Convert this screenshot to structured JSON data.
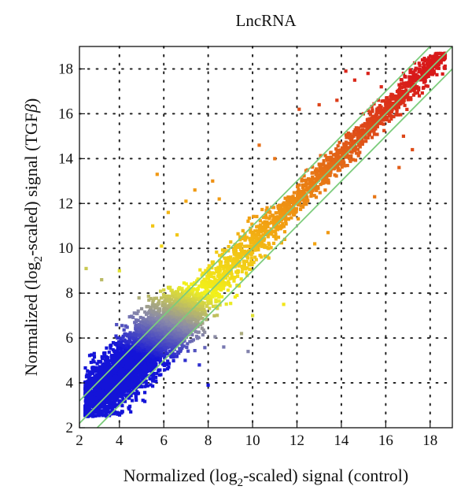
{
  "chart_data": {
    "type": "scatter",
    "title": "LncRNA",
    "xlabel": {
      "pre": "Normalized (log",
      "sub": "2",
      "post": "-scaled) signal (control)"
    },
    "ylabel": {
      "pre": "Normalized (log",
      "sub": "2",
      "post": "-scaled) signal (TGF",
      "beta": "β",
      "close": ")"
    },
    "xlim": [
      2.2,
      19
    ],
    "ylim": [
      2,
      19
    ],
    "x_ticks": [
      2,
      4,
      6,
      8,
      10,
      12,
      14,
      16,
      18
    ],
    "y_ticks": [
      2,
      4,
      6,
      8,
      10,
      12,
      14,
      16,
      18
    ],
    "grid": "dotted",
    "reference_lines": [
      {
        "name": "",
        "offset": 0,
        "color": "#7ccc7c"
      },
      {
        "name": "",
        "offset": 1,
        "color": "#7ccc7c"
      },
      {
        "name": "",
        "offset": -1,
        "color": "#7ccc7c"
      }
    ],
    "color_scale": [
      "#1414d8",
      "#8a8aa8",
      "#f2f21a",
      "#f2a012",
      "#e05a18",
      "#d81a1a"
    ],
    "point_count": 6000,
    "outliers": [
      {
        "x": 2.5,
        "y": 9.1
      },
      {
        "x": 3.2,
        "y": 8.6
      },
      {
        "x": 4.0,
        "y": 9.0
      },
      {
        "x": 5.5,
        "y": 11.0
      },
      {
        "x": 5.9,
        "y": 10.1
      },
      {
        "x": 6.2,
        "y": 11.6
      },
      {
        "x": 7.4,
        "y": 12.6
      },
      {
        "x": 8.2,
        "y": 13.0
      },
      {
        "x": 5.7,
        "y": 13.3
      },
      {
        "x": 7.0,
        "y": 12.1
      },
      {
        "x": 6.6,
        "y": 10.6
      },
      {
        "x": 8.5,
        "y": 12.2
      },
      {
        "x": 10.3,
        "y": 14.6
      },
      {
        "x": 11.0,
        "y": 14.0
      },
      {
        "x": 12.1,
        "y": 16.2
      },
      {
        "x": 13.0,
        "y": 16.4
      },
      {
        "x": 13.8,
        "y": 16.6
      },
      {
        "x": 14.6,
        "y": 17.5
      },
      {
        "x": 15.2,
        "y": 17.8
      },
      {
        "x": 15.8,
        "y": 17.2
      },
      {
        "x": 16.8,
        "y": 17.8
      },
      {
        "x": 17.5,
        "y": 18.0
      },
      {
        "x": 18.2,
        "y": 18.3
      },
      {
        "x": 14.2,
        "y": 17.9
      },
      {
        "x": 9.3,
        "y": 7.9
      },
      {
        "x": 8.7,
        "y": 5.6
      },
      {
        "x": 9.5,
        "y": 6.2
      },
      {
        "x": 10.0,
        "y": 7.0
      },
      {
        "x": 11.4,
        "y": 7.5
      },
      {
        "x": 7.6,
        "y": 4.8
      },
      {
        "x": 9.8,
        "y": 5.4
      },
      {
        "x": 8.0,
        "y": 3.9
      },
      {
        "x": 15.5,
        "y": 12.3
      },
      {
        "x": 16.6,
        "y": 13.6
      },
      {
        "x": 13.4,
        "y": 10.7
      },
      {
        "x": 16.8,
        "y": 15.0
      },
      {
        "x": 12.8,
        "y": 10.2
      },
      {
        "x": 17.2,
        "y": 14.4
      }
    ]
  }
}
